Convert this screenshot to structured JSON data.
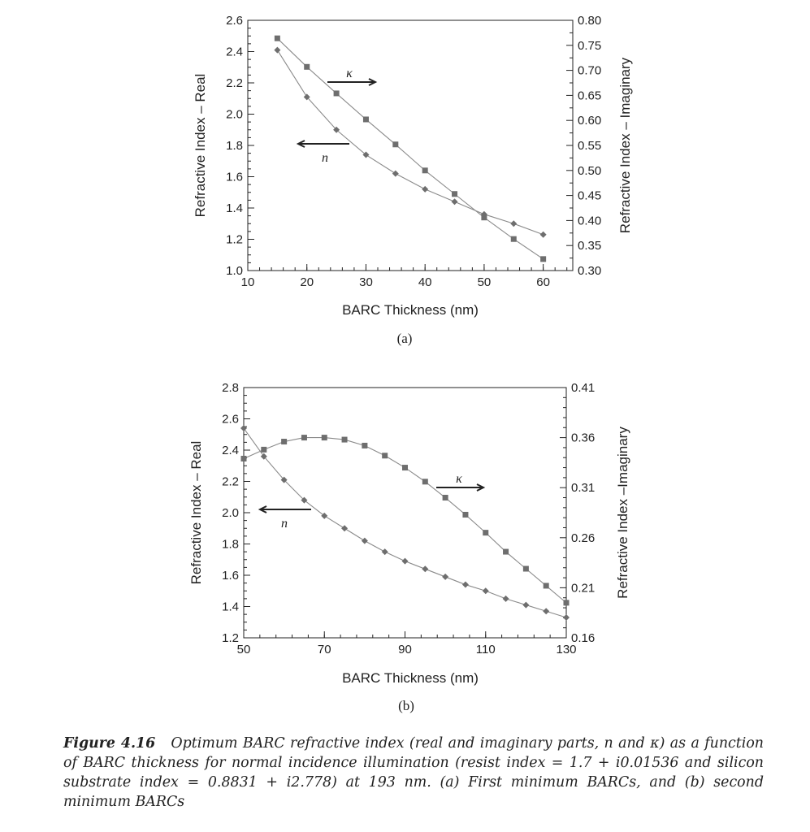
{
  "chart_data": [
    {
      "type": "line",
      "panel_label": "(a)",
      "xlabel": "BARC Thickness (nm)",
      "ylabel": "Refractive Index – Real",
      "ylabel_right": "Refractive Index – Imaginary",
      "xlim": [
        10,
        65
      ],
      "ylim": [
        1.0,
        2.6
      ],
      "ylim_right": [
        0.3,
        0.8
      ],
      "xticks": [
        "10",
        "20",
        "30",
        "40",
        "50",
        "60"
      ],
      "yticks": [
        "1.0",
        "1.2",
        "1.4",
        "1.6",
        "1.8",
        "2.0",
        "2.2",
        "2.4",
        "2.6"
      ],
      "yticks_right": [
        "0.30",
        "0.35",
        "0.40",
        "0.45",
        "0.50",
        "0.55",
        "0.60",
        "0.65",
        "0.70",
        "0.75",
        "0.80"
      ],
      "grid": false,
      "x": [
        15,
        20,
        25,
        30,
        35,
        40,
        45,
        50,
        55,
        60
      ],
      "series": [
        {
          "name": "n",
          "axis": "left",
          "marker": "diamond",
          "values": [
            2.41,
            2.11,
            1.9,
            1.74,
            1.62,
            1.52,
            1.44,
            1.36,
            1.3,
            1.23
          ]
        },
        {
          "name": "κ",
          "axis": "right",
          "marker": "square",
          "values": [
            0.764,
            0.707,
            0.654,
            0.602,
            0.552,
            0.5,
            0.453,
            0.406,
            0.363,
            0.323
          ]
        }
      ],
      "annotations": {
        "kappa": "κ",
        "n": "n"
      }
    },
    {
      "type": "line",
      "panel_label": "(b)",
      "xlabel": "BARC Thickness (nm)",
      "ylabel": "Refractive Index – Real",
      "ylabel_right": "Refractive Index –Imaginary",
      "xlim": [
        50,
        130
      ],
      "ylim": [
        1.2,
        2.8
      ],
      "ylim_right": [
        0.16,
        0.41
      ],
      "xticks": [
        "50",
        "70",
        "90",
        "110",
        "130"
      ],
      "yticks": [
        "1.2",
        "1.4",
        "1.6",
        "1.8",
        "2.0",
        "2.2",
        "2.4",
        "2.6",
        "2.8"
      ],
      "yticks_right": [
        "0.16",
        "0.21",
        "0.26",
        "0.31",
        "0.36",
        "0.41"
      ],
      "grid": false,
      "x": [
        50,
        55,
        60,
        65,
        70,
        75,
        80,
        85,
        90,
        95,
        100,
        105,
        110,
        115,
        120,
        125,
        130
      ],
      "series": [
        {
          "name": "n",
          "axis": "left",
          "marker": "diamond",
          "values": [
            2.54,
            2.36,
            2.21,
            2.08,
            1.98,
            1.9,
            1.82,
            1.75,
            1.69,
            1.64,
            1.59,
            1.54,
            1.5,
            1.45,
            1.41,
            1.37,
            1.33
          ]
        },
        {
          "name": "κ",
          "axis": "right",
          "marker": "square",
          "values": [
            0.339,
            0.348,
            0.356,
            0.36,
            0.36,
            0.358,
            0.352,
            0.342,
            0.33,
            0.316,
            0.3,
            0.283,
            0.265,
            0.246,
            0.229,
            0.212,
            0.195
          ]
        }
      ],
      "annotations": {
        "kappa": "κ",
        "n": "n"
      }
    }
  ],
  "caption": {
    "label": "Figure 4.16",
    "text": "Optimum BARC refractive index (real and imaginary parts, n and κ) as a function of BARC thickness for normal incidence illumination (resist index = 1.7 + i0.01536 and silicon substrate index = 0.8831 + i2.778) at 193 nm. (a) First minimum BARCs, and (b) second minimum BARCs"
  },
  "colors": {
    "line": "#8a8a8a",
    "marker": "#6e6e6e",
    "axis": "#222222"
  }
}
